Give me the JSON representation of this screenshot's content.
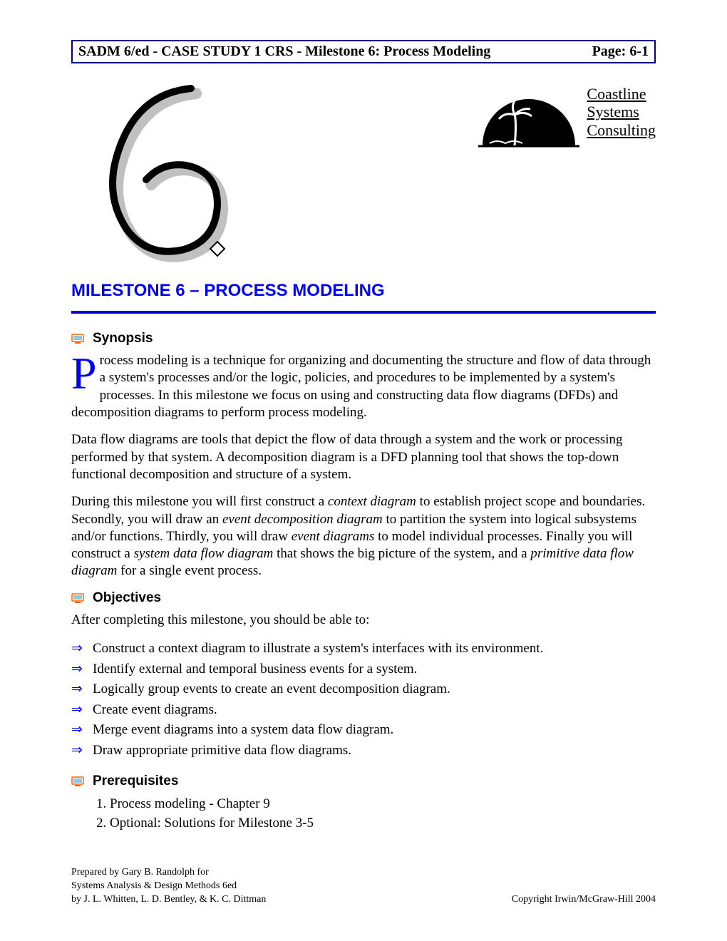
{
  "header": {
    "left": "SADM 6/ed - CASE STUDY 1 CRS - Milestone 6: Process Modeling",
    "right": "Page: 6-1"
  },
  "coastline": {
    "text": "Coastline\nSystems\nConsulting"
  },
  "title": "MILESTONE 6 – PROCESS MODELING",
  "colors": {
    "accent": "#0000ff",
    "rule": "#0000cc",
    "header_border": "#000080"
  },
  "synopsis": {
    "heading": "Synopsis",
    "dropcap": "P",
    "p1_rest": "rocess modeling is a technique for organizing and documenting the structure and flow of data through a system's processes and/or the logic, policies, and procedures to be implemented by a system's processes. In this milestone we focus on using and constructing data flow diagrams (DFDs) and decomposition diagrams to perform process modeling.",
    "p2": "Data flow diagrams are tools that depict the flow of data through a system and the work or processing performed by that system. A decomposition diagram is a DFD planning tool that shows the top-down functional decomposition and structure of a system.",
    "p3_html": "During this milestone you will first construct a <em>context diagram</em> to establish project scope and boundaries. Secondly, you will draw an <em>event decomposition diagram</em> to partition the system into logical subsystems and/or functions. Thirdly, you will draw <em>event diagrams</em> to model individual processes. Finally you will construct a <em>system data flow diagram</em> that shows the big picture of the system, and a <em>primitive data flow diagram</em> for a single event process."
  },
  "objectives": {
    "heading": "Objectives",
    "intro": "After completing this milestone, you should be able to:",
    "items": [
      "Construct a context diagram to illustrate a system's interfaces with its environment.",
      "Identify external and temporal business events for a system.",
      "Logically group events to create an event decomposition diagram.",
      "Create event diagrams.",
      "Merge event diagrams into a system data flow diagram.",
      "Draw appropriate primitive data flow diagrams."
    ]
  },
  "prerequisites": {
    "heading": "Prerequisites",
    "items": [
      "Process modeling - Chapter 9",
      "Optional: Solutions for Milestone 3-5"
    ]
  },
  "footer": {
    "left": "Prepared by Gary B. Randolph for\nSystems Analysis & Design Methods 6ed\nby J. L. Whitten, L. D. Bentley, & K. C. Dittman",
    "right": "Copyright Irwin/McGraw-Hill 2004"
  }
}
